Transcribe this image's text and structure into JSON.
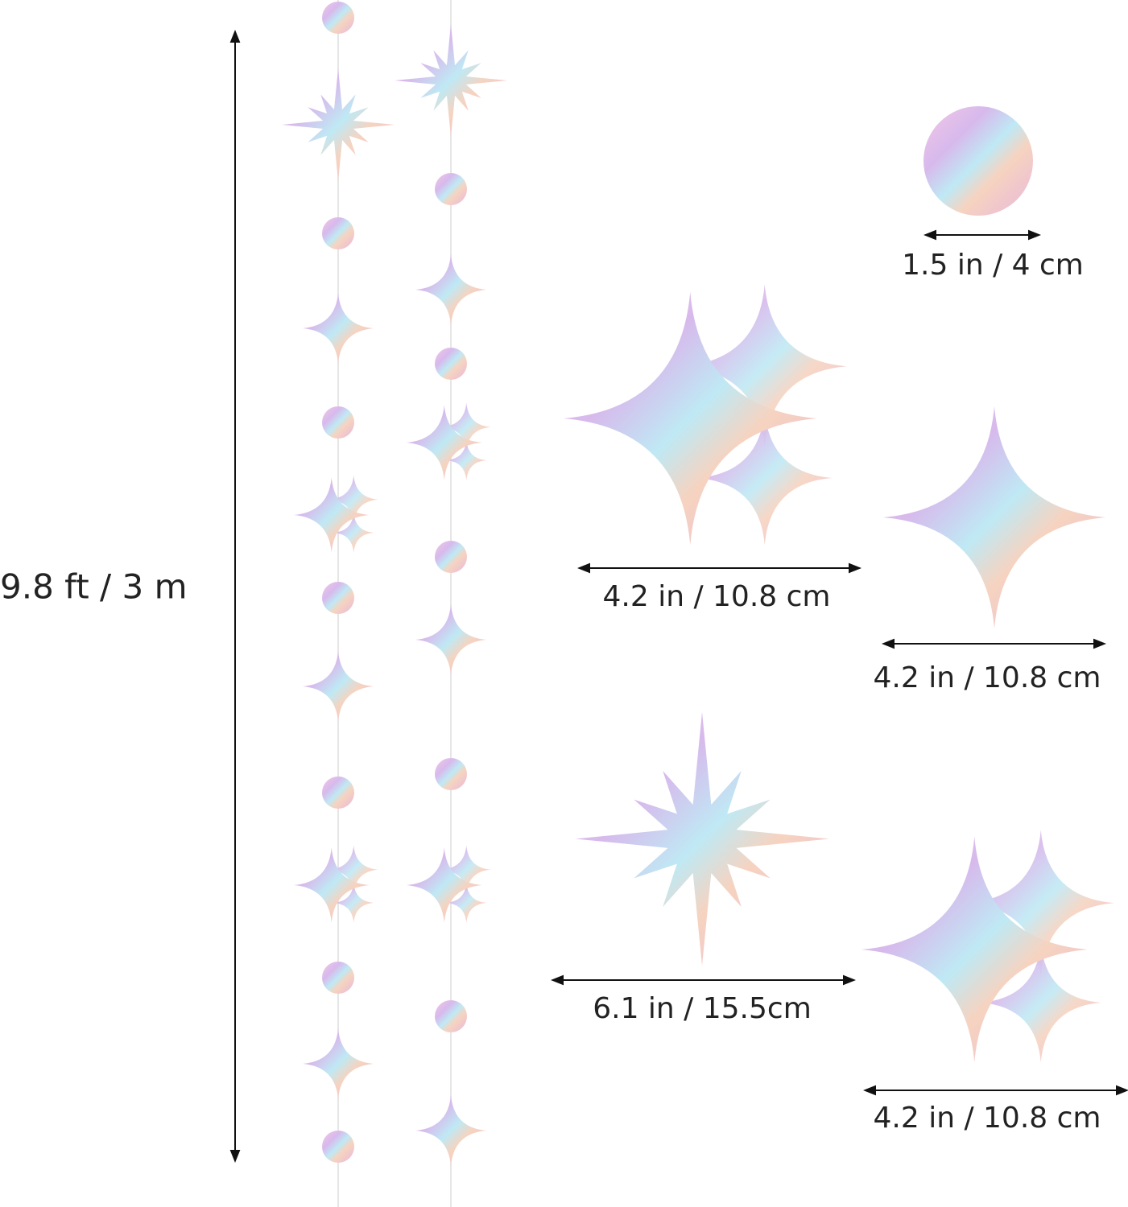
{
  "dimensions": {
    "total_length": "9.8 ft / 3 m",
    "circle": "1.5 in / 4 cm",
    "double_star": "4.2 in / 10.8 cm",
    "four_point_star": "4.2 in / 10.8 cm",
    "burst_star": "6.1 in / 15.5cm",
    "double_star_large": "4.2 in / 10.8 cm"
  }
}
